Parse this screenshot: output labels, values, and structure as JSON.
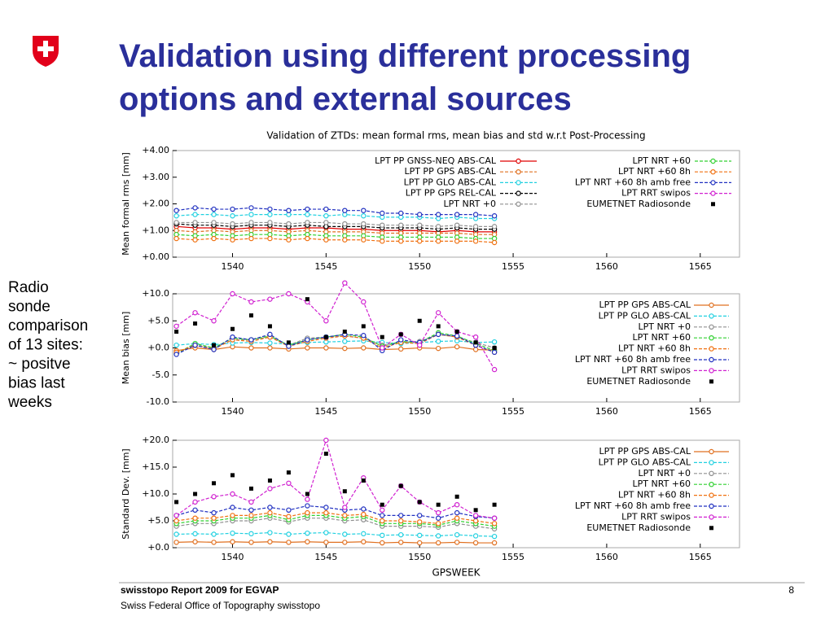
{
  "title": [
    "Validation using different processing",
    "options and external sources"
  ],
  "side_text": [
    "Radio",
    "sonde",
    "comparison",
    "of 13 sites:",
    "~ positve",
    "bias last",
    "weeks"
  ],
  "footer": {
    "report": "swisstopo Report 2009 for EGVAP",
    "office": "Swiss Federal Office of Topography swisstopo",
    "page": "8"
  },
  "chart_data": [
    {
      "type": "line",
      "title": "Validation of ZTDs: mean formal rms, mean bias and std w.r.t Post-Processing",
      "y_label": "Mean formal rms [mm]",
      "x": [
        1537,
        1538,
        1539,
        1540,
        1541,
        1542,
        1543,
        1544,
        1545,
        1546,
        1547,
        1548,
        1549,
        1550,
        1551,
        1552,
        1553,
        1554
      ],
      "xlim": [
        1536.8,
        1567.1
      ],
      "xticks": [
        1540,
        1545,
        1550,
        1555,
        1560,
        1565
      ],
      "ylim": [
        0,
        4
      ],
      "yticks": [
        {
          "value": 0,
          "label": "+0.00"
        },
        {
          "value": 1,
          "label": "+1.00"
        },
        {
          "value": 2,
          "label": "+2.00"
        },
        {
          "value": 3,
          "label": "+3.00"
        },
        {
          "value": 4,
          "label": "+4.00"
        }
      ],
      "legend": "upper right",
      "series": [
        {
          "name": "LPT PP GNSS-NEQ ABS-CAL",
          "color": "#e00000",
          "values": [
            1.15,
            1.1,
            1.1,
            1.05,
            1.1,
            1.1,
            1.05,
            1.1,
            1.1,
            1.05,
            1.05,
            1.0,
            1.0,
            1.0,
            0.95,
            1.0,
            0.95,
            0.95
          ]
        },
        {
          "name": "LPT PP GPS ABS-CAL",
          "color": "#e07020",
          "values": [
            1.0,
            0.95,
            1.0,
            0.95,
            1.0,
            1.0,
            0.95,
            1.0,
            0.95,
            0.95,
            0.95,
            0.9,
            0.9,
            0.9,
            0.9,
            0.9,
            0.85,
            0.85
          ]
        },
        {
          "name": "LPT PP GLO ABS-CAL",
          "color": "#20d0e0",
          "values": [
            1.55,
            1.6,
            1.6,
            1.55,
            1.6,
            1.6,
            1.6,
            1.6,
            1.55,
            1.6,
            1.55,
            1.5,
            1.5,
            1.5,
            1.45,
            1.5,
            1.45,
            1.45
          ]
        },
        {
          "name": "LPT PP GPS REL-CAL",
          "color": "#000000",
          "values": [
            1.25,
            1.2,
            1.2,
            1.15,
            1.2,
            1.2,
            1.15,
            1.2,
            1.15,
            1.15,
            1.15,
            1.1,
            1.1,
            1.1,
            1.05,
            1.1,
            1.05,
            1.05
          ]
        },
        {
          "name": "LPT NRT +0",
          "color": "#909090",
          "values": [
            1.3,
            1.3,
            1.3,
            1.25,
            1.3,
            1.3,
            1.25,
            1.3,
            1.3,
            1.25,
            1.25,
            1.2,
            1.2,
            1.2,
            1.15,
            1.2,
            1.15,
            1.15
          ]
        },
        {
          "name": "LPT NRT +60",
          "color": "#30d030",
          "values": [
            0.85,
            0.8,
            0.85,
            0.8,
            0.85,
            0.85,
            0.8,
            0.85,
            0.8,
            0.8,
            0.8,
            0.75,
            0.75,
            0.75,
            0.75,
            0.75,
            0.7,
            0.7
          ]
        },
        {
          "name": "LPT NRT +60 8h",
          "color": "#f07010",
          "values": [
            0.7,
            0.65,
            0.7,
            0.65,
            0.7,
            0.7,
            0.65,
            0.7,
            0.65,
            0.65,
            0.65,
            0.6,
            0.6,
            0.6,
            0.6,
            0.6,
            0.6,
            0.55
          ]
        },
        {
          "name": "LPT NRT +60 8h amb free",
          "color": "#2030c0",
          "values": [
            1.75,
            1.85,
            1.8,
            1.8,
            1.85,
            1.8,
            1.75,
            1.8,
            1.8,
            1.75,
            1.75,
            1.65,
            1.65,
            1.6,
            1.6,
            1.6,
            1.6,
            1.55
          ]
        },
        {
          "name": "LPT RRT swipos",
          "color": "#d020d0",
          "values": [
            null,
            null,
            null,
            null,
            null,
            null,
            null,
            null,
            null,
            null,
            null,
            null,
            null,
            null,
            null,
            null,
            null,
            null
          ]
        },
        {
          "name": "EUMETNET Radiosonde",
          "color": "#000000",
          "line": false,
          "values": [
            null,
            null,
            null,
            null,
            null,
            null,
            null,
            null,
            null,
            null,
            null,
            null,
            null,
            null,
            null,
            null,
            null,
            null
          ]
        }
      ]
    },
    {
      "type": "line",
      "y_label": "Mean bias [mm]",
      "x": [
        1537,
        1538,
        1539,
        1540,
        1541,
        1542,
        1543,
        1544,
        1545,
        1546,
        1547,
        1548,
        1549,
        1550,
        1551,
        1552,
        1553,
        1554
      ],
      "xlim": [
        1536.8,
        1567.1
      ],
      "xticks": [
        1540,
        1545,
        1550,
        1555,
        1560,
        1565
      ],
      "ylim": [
        -10,
        10
      ],
      "yticks": [
        {
          "value": -10,
          "label": "-10.0"
        },
        {
          "value": -5,
          "label": "-5.0"
        },
        {
          "value": 0,
          "label": "+0.0"
        },
        {
          "value": 5,
          "label": "+5.0"
        },
        {
          "value": 10,
          "label": "+10.0"
        }
      ],
      "legend": "upper right",
      "series": [
        {
          "name": "LPT PP GPS ABS-CAL",
          "color": "#e07020",
          "values": [
            -0.5,
            0,
            -0.3,
            0.2,
            0,
            0,
            -0.2,
            0,
            0,
            -0.1,
            0,
            -0.3,
            -0.2,
            0,
            -0.1,
            0.2,
            -0.3,
            -0.4
          ]
        },
        {
          "name": "LPT PP GLO ABS-CAL",
          "color": "#20d0e0",
          "values": [
            0.5,
            0.8,
            0.6,
            0.9,
            1.0,
            0.9,
            0.7,
            1.0,
            1.1,
            1.2,
            1.3,
            1.0,
            0.8,
            1.0,
            1.2,
            1.3,
            1.0,
            1.1
          ]
        },
        {
          "name": "LPT NRT +0",
          "color": "#909090",
          "values": [
            -1,
            0.5,
            0,
            1.5,
            1.5,
            2,
            0.5,
            1.8,
            2,
            2.2,
            1.8,
            0.5,
            1,
            1.2,
            2.5,
            2,
            1,
            0
          ]
        },
        {
          "name": "LPT NRT +60",
          "color": "#30d030",
          "values": [
            -1,
            0.8,
            0,
            1.8,
            1.5,
            2.2,
            0.5,
            1.5,
            2,
            2.5,
            2,
            0.3,
            1.2,
            1,
            2.8,
            2.2,
            0.8,
            -0.5
          ]
        },
        {
          "name": "LPT NRT +60 8h",
          "color": "#f07010",
          "values": [
            -0.8,
            0.5,
            -0.2,
            1.5,
            1.2,
            2,
            0.3,
            1.2,
            1.8,
            2.2,
            1.8,
            0,
            1,
            0.8,
            2.5,
            2,
            0.5,
            -0.8
          ]
        },
        {
          "name": "LPT NRT +60 8h amb free",
          "color": "#2030c0",
          "values": [
            -1.2,
            0.5,
            -0.3,
            2,
            1.5,
            2.5,
            0.3,
            1.5,
            2,
            2.5,
            2.3,
            -0.5,
            1.5,
            1,
            2.5,
            2.2,
            0.5,
            -0.8
          ]
        },
        {
          "name": "LPT RRT swipos",
          "color": "#d020d0",
          "values": [
            4,
            6.5,
            5,
            10,
            8.5,
            9,
            10,
            8.5,
            5,
            12,
            8.5,
            0,
            2.5,
            0.5,
            6.5,
            3,
            2,
            -4
          ]
        },
        {
          "name": "EUMETNET Radiosonde",
          "color": "#000000",
          "line": false,
          "values": [
            3,
            4.5,
            0.5,
            3.5,
            6,
            4,
            1,
            9,
            2,
            3,
            4,
            2,
            2.5,
            5,
            4,
            3,
            1,
            0
          ]
        }
      ]
    },
    {
      "type": "line",
      "y_label": "Standard Dev. [mm]",
      "x_label": "GPSWEEK",
      "x": [
        1537,
        1538,
        1539,
        1540,
        1541,
        1542,
        1543,
        1544,
        1545,
        1546,
        1547,
        1548,
        1549,
        1550,
        1551,
        1552,
        1553,
        1554
      ],
      "xlim": [
        1536.8,
        1567.1
      ],
      "xticks": [
        1540,
        1545,
        1550,
        1555,
        1560,
        1565
      ],
      "ylim": [
        0,
        20
      ],
      "yticks": [
        {
          "value": 0,
          "label": "+0.0"
        },
        {
          "value": 5,
          "label": "+5.0"
        },
        {
          "value": 10,
          "label": "+10.0"
        },
        {
          "value": 15,
          "label": "+15.0"
        },
        {
          "value": 20,
          "label": "+20.0"
        }
      ],
      "legend": "upper right",
      "series": [
        {
          "name": "LPT PP GPS ABS-CAL",
          "color": "#e07020",
          "values": [
            1,
            1.1,
            1,
            1.1,
            1,
            1.1,
            1,
            1.1,
            1,
            1,
            1.1,
            0.9,
            1,
            0.9,
            0.9,
            1,
            0.9,
            0.9
          ]
        },
        {
          "name": "LPT PP GLO ABS-CAL",
          "color": "#20d0e0",
          "values": [
            2.5,
            2.6,
            2.5,
            2.7,
            2.6,
            2.8,
            2.5,
            2.7,
            2.8,
            2.5,
            2.6,
            2.3,
            2.4,
            2.3,
            2.2,
            2.4,
            2.2,
            2.1
          ]
        },
        {
          "name": "LPT NRT +0",
          "color": "#909090",
          "values": [
            4,
            4.5,
            4.5,
            5,
            5,
            5.5,
            4.8,
            5.5,
            5.5,
            5,
            5.2,
            4,
            4,
            4,
            3.8,
            4.5,
            4,
            3.5
          ]
        },
        {
          "name": "LPT NRT +60",
          "color": "#30d030",
          "values": [
            4.5,
            5,
            5,
            5.5,
            5.5,
            6,
            5.2,
            6,
            6,
            5.5,
            5.8,
            4.5,
            4.5,
            4.5,
            4.2,
            5,
            4.5,
            4
          ]
        },
        {
          "name": "LPT NRT +60 8h",
          "color": "#f07010",
          "values": [
            5,
            5.5,
            5.5,
            6,
            6,
            6.5,
            5.8,
            6.5,
            6.5,
            6,
            6.2,
            5,
            5,
            4.8,
            4.5,
            5.5,
            5,
            4.5
          ]
        },
        {
          "name": "LPT NRT +60 8h amb free",
          "color": "#2030c0",
          "values": [
            6,
            7,
            6.5,
            7.5,
            7,
            7.5,
            7,
            7.8,
            7.5,
            7,
            7.2,
            6,
            6,
            6,
            5.5,
            6.5,
            5.8,
            5.5
          ]
        },
        {
          "name": "LPT RRT swipos",
          "color": "#d020d0",
          "values": [
            6,
            8.5,
            9.5,
            10,
            8.5,
            11,
            12,
            9,
            20,
            7.5,
            13,
            7,
            11.5,
            8.5,
            6.5,
            8,
            6,
            5.5
          ]
        },
        {
          "name": "EUMETNET Radiosonde",
          "color": "#000000",
          "line": false,
          "values": [
            8.5,
            10,
            12,
            13.5,
            11,
            12.5,
            14,
            10,
            17.5,
            10.5,
            12.5,
            8,
            11.5,
            8.5,
            8,
            9.5,
            7,
            8
          ]
        }
      ]
    }
  ]
}
